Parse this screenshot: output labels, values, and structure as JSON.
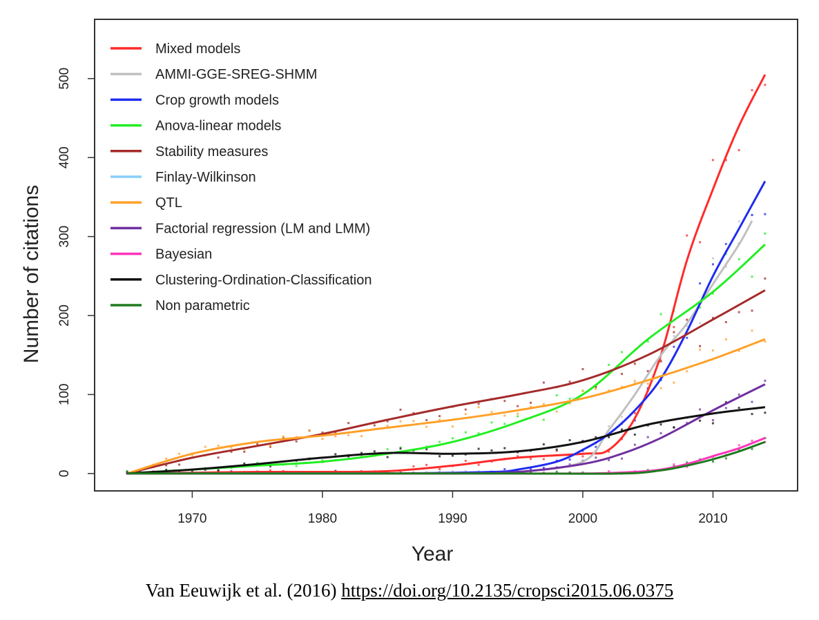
{
  "chart_data": {
    "type": "line",
    "xlabel": "Year",
    "ylabel": "Number of citations",
    "xlim": [
      1962.5,
      2016.5
    ],
    "ylim": [
      -22,
      575
    ],
    "xticks": [
      1970,
      1980,
      1990,
      2000,
      2010
    ],
    "yticks": [
      0,
      100,
      200,
      300,
      400,
      500
    ],
    "grid": false,
    "legend_position": "top-left",
    "series": [
      {
        "name": "Mixed models",
        "color": "#ff2a2a",
        "x": [
          1965,
          1970,
          1975,
          1980,
          1985,
          1990,
          1995,
          2000,
          2002,
          2004,
          2006,
          2008,
          2010,
          2012,
          2014
        ],
        "y": [
          0,
          1,
          2,
          2,
          3,
          10,
          20,
          25,
          30,
          70,
          150,
          270,
          360,
          440,
          505
        ]
      },
      {
        "name": "AMMI-GGE-SREG-SHMM",
        "color": "#c0c0c0",
        "x": [
          1965,
          1970,
          1975,
          1980,
          1985,
          1990,
          1995,
          2000,
          2002,
          2004,
          2006,
          2008,
          2010,
          2012,
          2013
        ],
        "y": [
          0,
          0,
          0,
          0,
          0,
          0,
          2,
          15,
          55,
          100,
          150,
          190,
          240,
          290,
          320
        ]
      },
      {
        "name": "Crop growth models",
        "color": "#1f2cf0",
        "x": [
          1965,
          1975,
          1985,
          1993,
          1995,
          1998,
          2000,
          2002,
          2004,
          2006,
          2008,
          2010,
          2012,
          2014
        ],
        "y": [
          0,
          0,
          0,
          2,
          5,
          15,
          30,
          50,
          80,
          120,
          180,
          250,
          310,
          370
        ]
      },
      {
        "name": "Anova-linear models",
        "color": "#22ee22",
        "x": [
          1965,
          1970,
          1975,
          1980,
          1985,
          1990,
          1995,
          2000,
          2005,
          2010,
          2014
        ],
        "y": [
          0,
          5,
          10,
          15,
          25,
          40,
          65,
          100,
          170,
          230,
          290
        ]
      },
      {
        "name": "Stability measures",
        "color": "#a52a2a",
        "x": [
          1965,
          1970,
          1975,
          1980,
          1985,
          1990,
          1995,
          2000,
          2005,
          2010,
          2014
        ],
        "y": [
          0,
          20,
          35,
          50,
          68,
          85,
          100,
          118,
          150,
          195,
          232
        ]
      },
      {
        "name": "Finlay-Wilkinson",
        "color": "#87cefa",
        "x": [],
        "y": []
      },
      {
        "name": "QTL",
        "color": "#ffa028",
        "x": [
          1965,
          1970,
          1975,
          1980,
          1985,
          1990,
          1995,
          2000,
          2005,
          2010,
          2014
        ],
        "y": [
          0,
          25,
          40,
          48,
          58,
          68,
          80,
          95,
          118,
          145,
          170
        ]
      },
      {
        "name": "Factorial regression (LM and LMM)",
        "color": "#7030a0",
        "x": [
          1965,
          1980,
          1990,
          1995,
          2000,
          2003,
          2006,
          2010,
          2014
        ],
        "y": [
          0,
          0,
          0,
          2,
          12,
          25,
          45,
          80,
          113
        ]
      },
      {
        "name": "Bayesian",
        "color": "#ff33bb",
        "x": [
          1965,
          1990,
          2000,
          2004,
          2006,
          2008,
          2010,
          2012,
          2014
        ],
        "y": [
          0,
          0,
          0,
          2,
          5,
          12,
          22,
          32,
          45
        ]
      },
      {
        "name": "Clustering-Ordination-Classification",
        "color": "#111111",
        "x": [
          1965,
          1970,
          1975,
          1980,
          1985,
          1990,
          1995,
          2000,
          2005,
          2010,
          2014
        ],
        "y": [
          0,
          5,
          12,
          20,
          26,
          25,
          28,
          40,
          62,
          76,
          84
        ]
      },
      {
        "name": "Non parametric",
        "color": "#1e7a1e",
        "x": [
          1965,
          1975,
          1985,
          1995,
          2003,
          2006,
          2008,
          2010,
          2012,
          2014
        ],
        "y": [
          0,
          0,
          0,
          0,
          0,
          4,
          10,
          18,
          28,
          40
        ]
      }
    ]
  },
  "citation": {
    "text": "Van Eeuwijk et al. (2016) ",
    "link": "https://doi.org/10.2135/cropsci2015.06.0375"
  }
}
